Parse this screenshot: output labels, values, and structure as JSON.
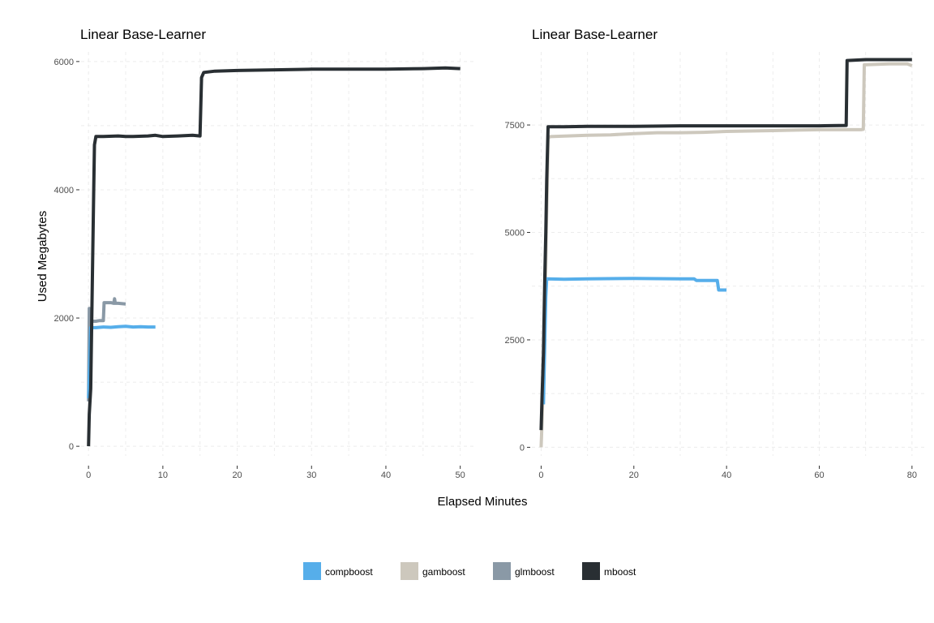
{
  "chart_data": [
    {
      "type": "line",
      "title": "Linear Base-Learner",
      "xlabel": "Elapsed Minutes",
      "ylabel": "Used Megabytes",
      "xlim": [
        -1,
        52
      ],
      "ylim": [
        -150,
        6150
      ],
      "x_ticks": [
        0,
        10,
        20,
        30,
        40,
        50
      ],
      "y_ticks": [
        0,
        2000,
        4000,
        6000
      ],
      "grid": true,
      "series": [
        {
          "name": "glmboost",
          "color": "#8a99a6",
          "points": [
            [
              0,
              700
            ],
            [
              0.1,
              2150
            ],
            [
              0.2,
              1300
            ],
            [
              0.3,
              1900
            ],
            [
              0.5,
              1950
            ],
            [
              1,
              1950
            ],
            [
              1.5,
              1960
            ],
            [
              2,
              1960
            ],
            [
              2.1,
              2240
            ],
            [
              2.5,
              2240
            ],
            [
              3,
              2240
            ],
            [
              3.4,
              2230
            ],
            [
              3.5,
              2300
            ],
            [
              3.6,
              2230
            ],
            [
              4,
              2230
            ],
            [
              5,
              2220
            ]
          ]
        },
        {
          "name": "compboost",
          "color": "#56aeea",
          "points": [
            [
              0,
              750
            ],
            [
              0.3,
              1850
            ],
            [
              1,
              1850
            ],
            [
              2,
              1860
            ],
            [
              3,
              1855
            ],
            [
              4,
              1865
            ],
            [
              5,
              1870
            ],
            [
              6,
              1860
            ],
            [
              7,
              1865
            ],
            [
              8,
              1860
            ],
            [
              9,
              1860
            ]
          ]
        },
        {
          "name": "mboost",
          "color": "#292f33",
          "points": [
            [
              0,
              0
            ],
            [
              0.1,
              500
            ],
            [
              0.3,
              900
            ],
            [
              0.5,
              2500
            ],
            [
              0.7,
              4000
            ],
            [
              0.8,
              4700
            ],
            [
              1,
              4830
            ],
            [
              2,
              4830
            ],
            [
              4,
              4840
            ],
            [
              5,
              4830
            ],
            [
              6,
              4830
            ],
            [
              8,
              4840
            ],
            [
              9,
              4850
            ],
            [
              10,
              4830
            ],
            [
              12,
              4840
            ],
            [
              14,
              4850
            ],
            [
              15,
              4840
            ],
            [
              15.2,
              5750
            ],
            [
              15.5,
              5830
            ],
            [
              17,
              5850
            ],
            [
              20,
              5860
            ],
            [
              25,
              5870
            ],
            [
              30,
              5880
            ],
            [
              35,
              5880
            ],
            [
              40,
              5880
            ],
            [
              45,
              5890
            ],
            [
              48,
              5900
            ],
            [
              50,
              5890
            ]
          ]
        }
      ]
    },
    {
      "type": "line",
      "title": "Linear Base-Learner",
      "xlabel": "Elapsed Minutes",
      "ylabel": "",
      "xlim": [
        -2,
        83
      ],
      "ylim": [
        -200,
        9200
      ],
      "x_ticks": [
        0,
        20,
        40,
        60,
        80
      ],
      "y_ticks": [
        0,
        2500,
        5000,
        7500
      ],
      "grid": true,
      "series": [
        {
          "name": "gamboost",
          "color": "#cdc8bd",
          "points": [
            [
              0,
              0
            ],
            [
              0.1,
              300
            ],
            [
              0.3,
              1000
            ],
            [
              0.6,
              2000
            ],
            [
              0.9,
              3500
            ],
            [
              1.1,
              5000
            ],
            [
              1.3,
              6000
            ],
            [
              1.5,
              7200
            ],
            [
              2,
              7230
            ],
            [
              10,
              7260
            ],
            [
              15,
              7270
            ],
            [
              20,
              7300
            ],
            [
              25,
              7320
            ],
            [
              30,
              7320
            ],
            [
              35,
              7330
            ],
            [
              40,
              7350
            ],
            [
              45,
              7360
            ],
            [
              50,
              7370
            ],
            [
              55,
              7380
            ],
            [
              60,
              7390
            ],
            [
              65,
              7390
            ],
            [
              69,
              7390
            ],
            [
              69.5,
              7400
            ],
            [
              69.7,
              8900
            ],
            [
              75,
              8920
            ],
            [
              79,
              8920
            ],
            [
              80,
              8880
            ]
          ]
        },
        {
          "name": "compboost",
          "color": "#56aeea",
          "points": [
            [
              0.5,
              1000
            ],
            [
              0.8,
              2500
            ],
            [
              1,
              3500
            ],
            [
              1.2,
              3920
            ],
            [
              5,
              3910
            ],
            [
              10,
              3920
            ],
            [
              20,
              3930
            ],
            [
              30,
              3920
            ],
            [
              33,
              3920
            ],
            [
              33.5,
              3880
            ],
            [
              38,
              3880
            ],
            [
              38.3,
              3660
            ],
            [
              40,
              3660
            ]
          ]
        },
        {
          "name": "mboost",
          "color": "#292f33",
          "points": [
            [
              0,
              400
            ],
            [
              0.2,
              1200
            ],
            [
              0.5,
              2200
            ],
            [
              0.8,
              4000
            ],
            [
              1,
              5000
            ],
            [
              1.2,
              6200
            ],
            [
              1.5,
              7460
            ],
            [
              5,
              7460
            ],
            [
              10,
              7470
            ],
            [
              20,
              7470
            ],
            [
              30,
              7480
            ],
            [
              40,
              7480
            ],
            [
              50,
              7480
            ],
            [
              60,
              7480
            ],
            [
              65.8,
              7490
            ],
            [
              66,
              9000
            ],
            [
              70,
              9020
            ],
            [
              80,
              9020
            ]
          ]
        }
      ]
    }
  ],
  "axis_title_x": "Elapsed Minutes",
  "axis_title_y": "Used Megabytes",
  "legend": [
    {
      "label": "compboost",
      "color": "#56aeea"
    },
    {
      "label": "gamboost",
      "color": "#cdc8bd"
    },
    {
      "label": "glmboost",
      "color": "#8a99a6"
    },
    {
      "label": "mboost",
      "color": "#292f33"
    }
  ]
}
